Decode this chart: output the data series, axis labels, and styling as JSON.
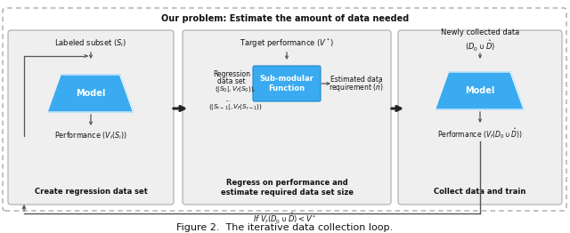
{
  "title": "Figure 2.  The iterative data collection loop.",
  "outer_title": "Our problem: Estimate the amount of data needed",
  "blue_color": "#3aabf0",
  "light_gray": "#efefef",
  "panel1_label": "Create regression data set",
  "panel2_label": "Regress on performance and\nestimate required data set size",
  "panel3_label": "Collect data and train",
  "model_text": "Model",
  "submod_text": "Sub-modular\nFunction",
  "labeled_subset": "Labeled subset ($S_i$)",
  "target_perf": "Target performance ($V^*$)",
  "newly_collected": "Newly collected data\n$(D_0 \\cup \\hat{D})$",
  "regression_line1": "Regression",
  "regression_line2": "data set",
  "regression_line3": "$(|S_0|, V_f(S_0)),$",
  "dots": "...",
  "regression_last": "$(|S_{r-1}|, V_f(S_{r-1}))$",
  "estimated_req_1": "Estimated data",
  "estimated_req_2": "requirement ($\\hat{n}$)",
  "perf_panel1": "Performance ($V_f(S_i)$)",
  "perf_panel3": "Performance ($V_f(D_0 \\cup \\hat{D})$)",
  "feedback_text": "If $V_f(D_0 \\cup \\hat{D}) < V^*$"
}
